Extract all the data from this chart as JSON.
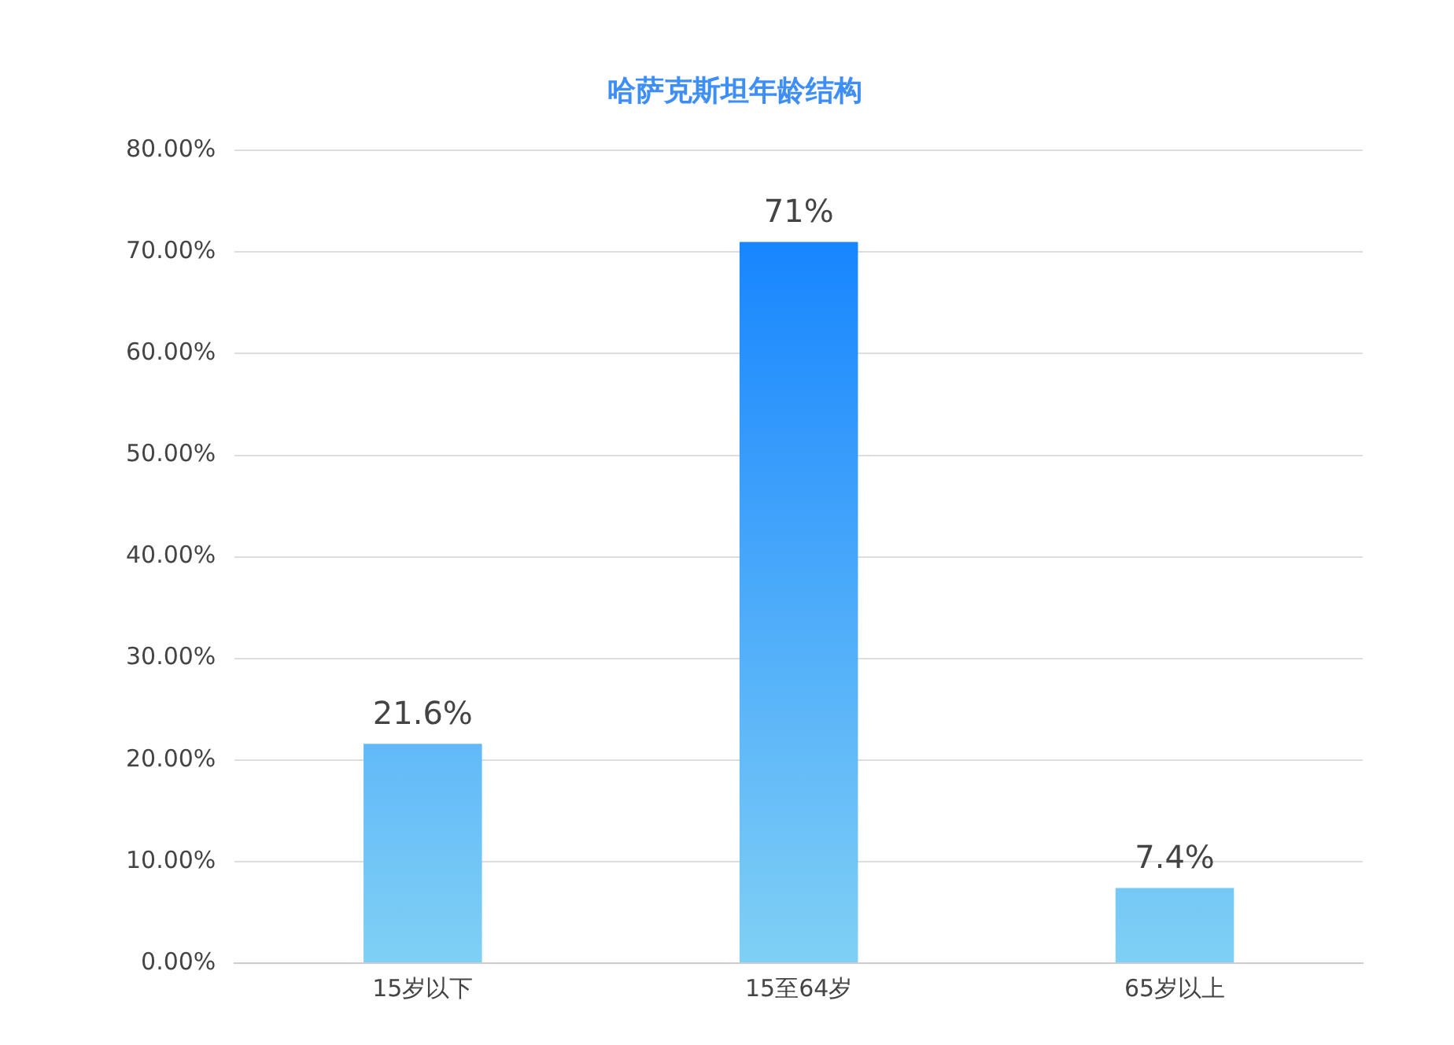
{
  "chart_data": {
    "type": "bar",
    "title": "哈萨克斯坦年龄结构",
    "categories": [
      "15岁以下",
      "15至64岁",
      "65岁以上"
    ],
    "values": [
      21.6,
      71,
      7.4
    ],
    "color": "#0a7cff",
    "value_labels": [
      "21.6%",
      "71%",
      "7.4%"
    ],
    "ylim": [
      0,
      80
    ],
    "yticks": [
      {
        "value": 0,
        "label": "0.00%"
      },
      {
        "value": 10,
        "label": "10.00%"
      },
      {
        "value": 20,
        "label": "20.00%"
      },
      {
        "value": 30,
        "label": "30.00%"
      },
      {
        "value": 40,
        "label": "40.00%"
      },
      {
        "value": 50,
        "label": "50.00%"
      },
      {
        "value": 60,
        "label": "60.00%"
      },
      {
        "value": 70,
        "label": "70.00%"
      },
      {
        "value": 80,
        "label": "80.00%"
      }
    ],
    "grid": "y",
    "legend": false
  }
}
